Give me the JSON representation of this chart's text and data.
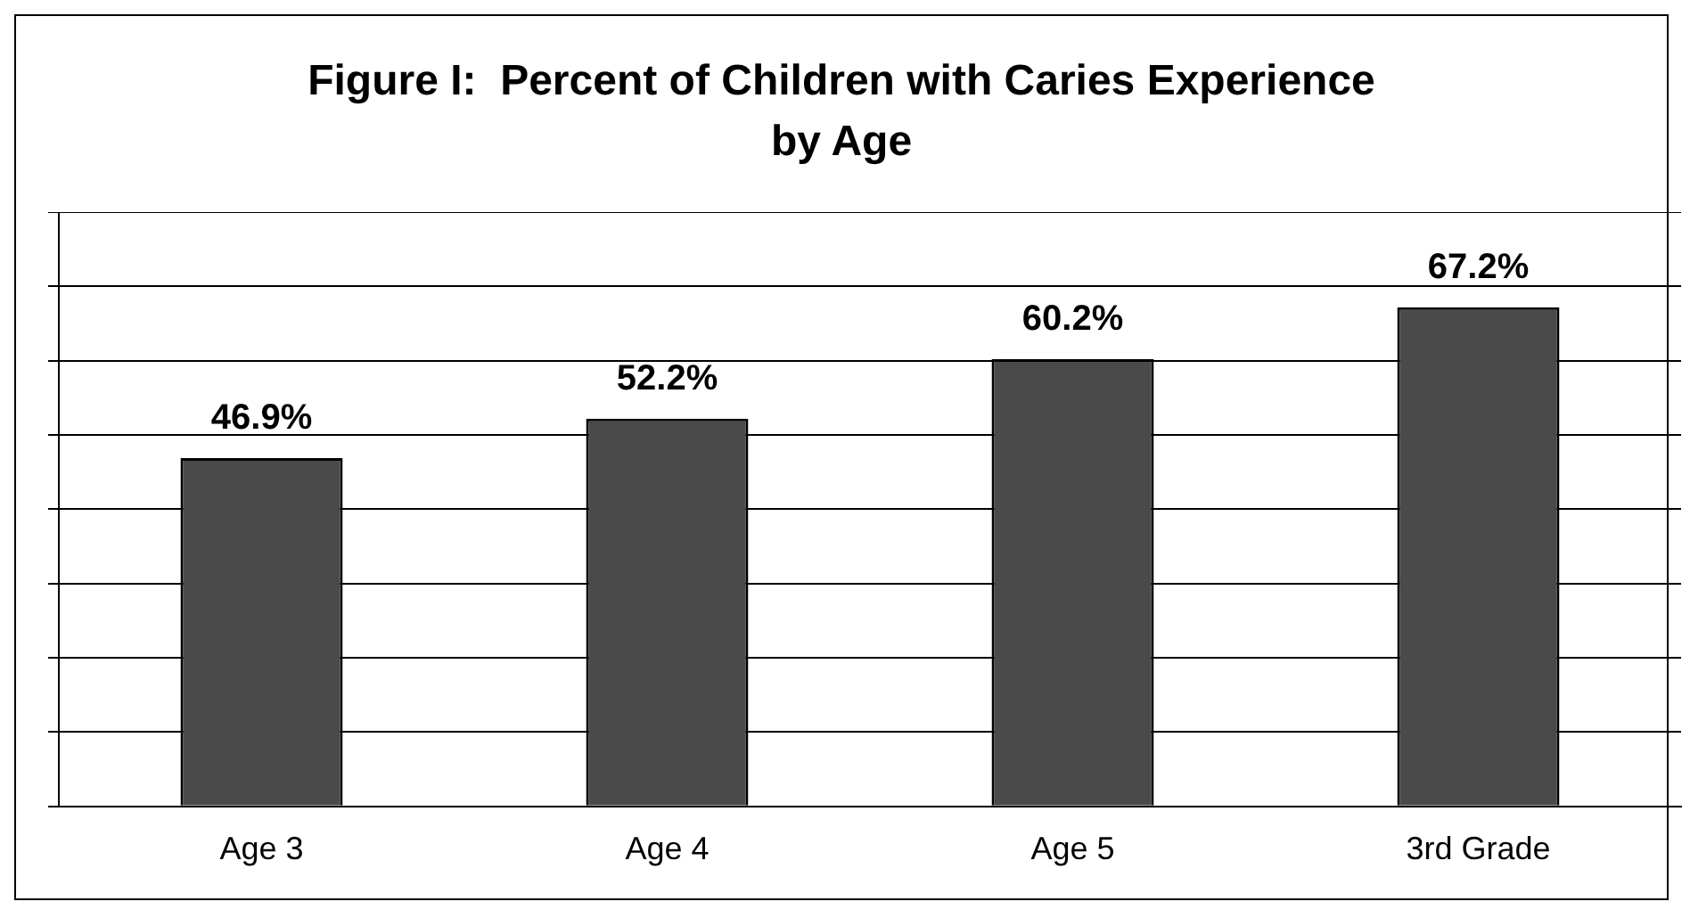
{
  "chart_data": {
    "type": "bar",
    "title": "Figure I:  Percent of Children with Caries Experience by Age",
    "categories": [
      "Age 3",
      "Age 4",
      "Age 5",
      "3rd Grade"
    ],
    "values": [
      46.9,
      52.2,
      60.2,
      67.2
    ],
    "value_labels": [
      "46.9%",
      "52.2%",
      "60.2%",
      "67.2%"
    ],
    "color": "#4a4a4a",
    "ylim": [
      0,
      80
    ],
    "grid": "y",
    "legend": false,
    "tick_labels": "x"
  }
}
